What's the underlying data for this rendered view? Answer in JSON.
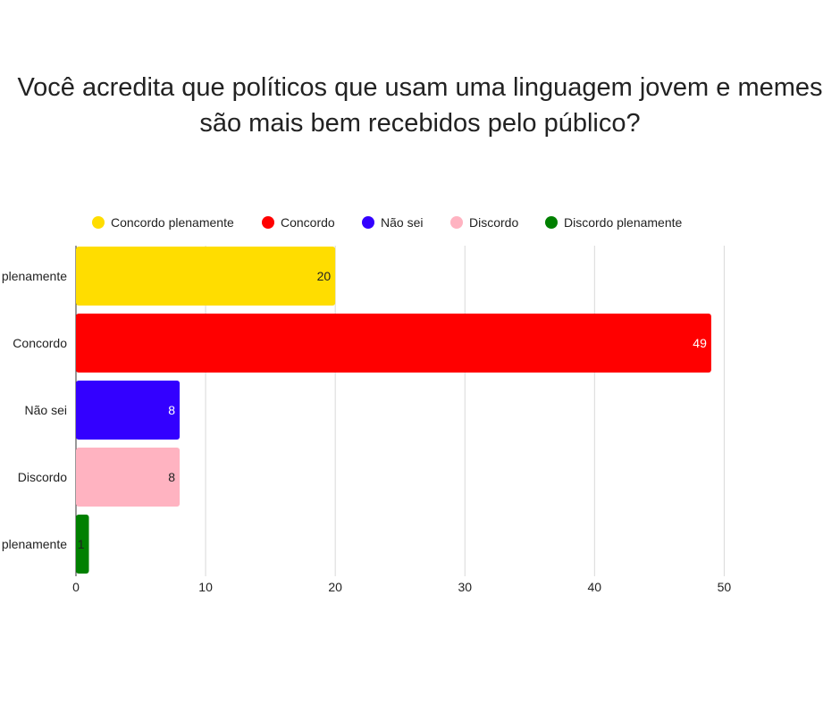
{
  "chart_data": {
    "type": "bar",
    "orientation": "horizontal",
    "title_lines": [
      "Você acredita que políticos que usam uma linguagem jovem e memes",
      "são mais bem recebidos pelo público?"
    ],
    "categories": [
      "Concordo plenamente",
      "Concordo",
      "Não sei",
      "Discordo",
      "Discordo plenamente"
    ],
    "values": [
      20,
      49,
      8,
      8,
      1
    ],
    "colors": [
      "#ffdd00",
      "#ff0000",
      "#3300ff",
      "#ffb3c1",
      "#008000"
    ],
    "value_label_colors": [
      "#222222",
      "#ffffff",
      "#ffffff",
      "#222222",
      "#222222"
    ],
    "x_ticks": [
      0,
      10,
      20,
      30,
      40,
      50
    ],
    "xlim": [
      0,
      57.9
    ],
    "grid": true,
    "legend_position": "top",
    "legend": [
      {
        "label": "Concordo plenamente",
        "color": "#ffdd00"
      },
      {
        "label": "Concordo",
        "color": "#ff0000"
      },
      {
        "label": "Não sei",
        "color": "#3300ff"
      },
      {
        "label": "Discordo",
        "color": "#ffb3c1"
      },
      {
        "label": "Discordo plenamente",
        "color": "#008000"
      }
    ]
  }
}
